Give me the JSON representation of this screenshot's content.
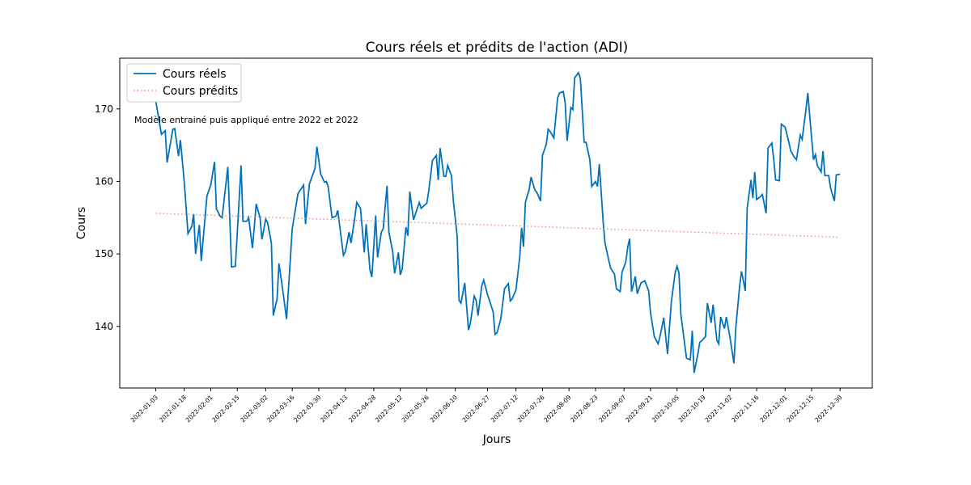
{
  "chart_data": {
    "type": "line",
    "title": "Cours réels et prédits de l'action (ADI)",
    "xlabel": "Jours",
    "ylabel": "Cours",
    "annotation": "Modèle entrainé puis appliqué entre 2022 et 2022",
    "legend": "upper left",
    "xlim": [
      "2021-12-15",
      "2023-01-16"
    ],
    "xticks": [
      "2022-01-03",
      "2022-01-18",
      "2022-02-01",
      "2022-02-15",
      "2022-03-02",
      "2022-03-16",
      "2022-03-30",
      "2022-04-13",
      "2022-04-28",
      "2022-05-12",
      "2022-05-26",
      "2022-06-10",
      "2022-06-27",
      "2022-07-12",
      "2022-07-26",
      "2022-08-09",
      "2022-08-23",
      "2022-09-07",
      "2022-09-21",
      "2022-10-05",
      "2022-10-19",
      "2022-11-02",
      "2022-11-16",
      "2022-12-01",
      "2022-12-15",
      "2022-12-30"
    ],
    "ylim": [
      131.5,
      177
    ],
    "yticks": [
      140,
      150,
      160,
      170
    ],
    "series": [
      {
        "name": "Cours réels",
        "color": "#0072bd",
        "style": "solid",
        "x": [
          "2022-01-03",
          "2022-01-05",
          "2022-01-06",
          "2022-01-08",
          "2022-01-09",
          "2022-01-12",
          "2022-01-13",
          "2022-01-15",
          "2022-01-16",
          "2022-01-18",
          "2022-01-20",
          "2022-01-22",
          "2022-01-23",
          "2022-01-24",
          "2022-01-26",
          "2022-01-27",
          "2022-01-30",
          "2022-02-01",
          "2022-02-03",
          "2022-02-04",
          "2022-02-06",
          "2022-02-07",
          "2022-02-10",
          "2022-02-12",
          "2022-02-14",
          "2022-02-17",
          "2022-02-18",
          "2022-02-20",
          "2022-02-21",
          "2022-02-23",
          "2022-02-25",
          "2022-02-27",
          "2022-02-28",
          "2022-03-02",
          "2022-03-03",
          "2022-03-05",
          "2022-03-06",
          "2022-03-08",
          "2022-03-09",
          "2022-03-11",
          "2022-03-13",
          "2022-03-16",
          "2022-03-19",
          "2022-03-22",
          "2022-03-23",
          "2022-03-25",
          "2022-03-28",
          "2022-03-29",
          "2022-03-31",
          "2022-04-02",
          "2022-04-03",
          "2022-04-04",
          "2022-04-06",
          "2022-04-08",
          "2022-04-09",
          "2022-04-12",
          "2022-04-13",
          "2022-04-15",
          "2022-04-16",
          "2022-04-18",
          "2022-04-19",
          "2022-04-21",
          "2022-04-23",
          "2022-04-24",
          "2022-04-26",
          "2022-04-27",
          "2022-04-29",
          "2022-04-30",
          "2022-05-02",
          "2022-05-03",
          "2022-05-05",
          "2022-05-06",
          "2022-05-08",
          "2022-05-09",
          "2022-05-11",
          "2022-05-12",
          "2022-05-13",
          "2022-05-15",
          "2022-05-16",
          "2022-05-17",
          "2022-05-19",
          "2022-05-20",
          "2022-05-22",
          "2022-05-23",
          "2022-05-26",
          "2022-05-27",
          "2022-05-29",
          "2022-05-31",
          "2022-06-01",
          "2022-06-02",
          "2022-06-04",
          "2022-06-05",
          "2022-06-06",
          "2022-06-08",
          "2022-06-09",
          "2022-06-11",
          "2022-06-12",
          "2022-06-13",
          "2022-06-15",
          "2022-06-17",
          "2022-06-18",
          "2022-06-20",
          "2022-06-21",
          "2022-06-22",
          "2022-06-24",
          "2022-06-25",
          "2022-06-27",
          "2022-06-30",
          "2022-07-01",
          "2022-07-02",
          "2022-07-04",
          "2022-07-06",
          "2022-07-08",
          "2022-07-09",
          "2022-07-10",
          "2022-07-12",
          "2022-07-14",
          "2022-07-15",
          "2022-07-16",
          "2022-07-17",
          "2022-07-19",
          "2022-07-20",
          "2022-07-22",
          "2022-07-23",
          "2022-07-25",
          "2022-07-26",
          "2022-07-28",
          "2022-07-29",
          "2022-07-30",
          "2022-08-01",
          "2022-08-03",
          "2022-08-04",
          "2022-08-06",
          "2022-08-07",
          "2022-08-08",
          "2022-08-10",
          "2022-08-11",
          "2022-08-12",
          "2022-08-14",
          "2022-08-15",
          "2022-08-17",
          "2022-08-18",
          "2022-08-20",
          "2022-08-21",
          "2022-08-23",
          "2022-08-24",
          "2022-08-25",
          "2022-08-27",
          "2022-08-28",
          "2022-08-30",
          "2022-08-31",
          "2022-09-02",
          "2022-09-03",
          "2022-09-05",
          "2022-09-06",
          "2022-09-08",
          "2022-09-09",
          "2022-09-10",
          "2022-09-11",
          "2022-09-13",
          "2022-09-14",
          "2022-09-16",
          "2022-09-18",
          "2022-09-20",
          "2022-09-21",
          "2022-09-23",
          "2022-09-25",
          "2022-09-26",
          "2022-09-28",
          "2022-09-29",
          "2022-09-30",
          "2022-10-02",
          "2022-10-04",
          "2022-10-05",
          "2022-10-06",
          "2022-10-07",
          "2022-10-09",
          "2022-10-10",
          "2022-10-12",
          "2022-10-13",
          "2022-10-14",
          "2022-10-16",
          "2022-10-17",
          "2022-10-18",
          "2022-10-20",
          "2022-10-21",
          "2022-10-23",
          "2022-10-24",
          "2022-10-26",
          "2022-10-27",
          "2022-10-28",
          "2022-10-30",
          "2022-10-31",
          "2022-11-02",
          "2022-11-04",
          "2022-11-05",
          "2022-11-07",
          "2022-11-08",
          "2022-11-10",
          "2022-11-11",
          "2022-11-13",
          "2022-11-14",
          "2022-11-15",
          "2022-11-16",
          "2022-11-18",
          "2022-11-19",
          "2022-11-21",
          "2022-11-22",
          "2022-11-24",
          "2022-11-25",
          "2022-11-26",
          "2022-11-28",
          "2022-11-29",
          "2022-12-01",
          "2022-12-03",
          "2022-12-04",
          "2022-12-06",
          "2022-12-07",
          "2022-12-09",
          "2022-12-10",
          "2022-12-12",
          "2022-12-13",
          "2022-12-14",
          "2022-12-16",
          "2022-12-17",
          "2022-12-18",
          "2022-12-20",
          "2022-12-21",
          "2022-12-22",
          "2022-12-24",
          "2022-12-25",
          "2022-12-27",
          "2022-12-28",
          "2022-12-30"
        ],
        "values": [
          171.1,
          168,
          166.5,
          167,
          162.6,
          167.2,
          167.3,
          163.5,
          165.7,
          160,
          152.8,
          153.8,
          155.5,
          150,
          154,
          149,
          158,
          159.5,
          162.7,
          156.2,
          155.2,
          155,
          162,
          148.2,
          148.3,
          162.2,
          154.5,
          154.5,
          155,
          150.8,
          156.9,
          155,
          152,
          154.8,
          154.3,
          151.5,
          141.5,
          143.8,
          148.7,
          145,
          141,
          153.5,
          158.3,
          159.5,
          154.1,
          159.6,
          161.8,
          164.8,
          161,
          159.9,
          160,
          159.2,
          155,
          155.2,
          156,
          149.8,
          150.3,
          153,
          151.5,
          155,
          157.1,
          156.3,
          150.2,
          154.1,
          147.8,
          146.8,
          155.3,
          149.5,
          153,
          153.5,
          159.4,
          153,
          150.3,
          147.3,
          150.2,
          147.1,
          147.9,
          153.7,
          152.5,
          158.6,
          154.7,
          155.5,
          157.1,
          156.3,
          157,
          158.7,
          162.9,
          163.6,
          160.2,
          164.6,
          160.7,
          160.7,
          162.2,
          160.8,
          157.3,
          152.5,
          143.6,
          143.2,
          146,
          139.5,
          140.5,
          144.2,
          143.6,
          141.5,
          145.6,
          146.4,
          144.4,
          142,
          138.9,
          139.1,
          141,
          145.2,
          145.9,
          143.5,
          143.8,
          145,
          149.5,
          153.6,
          151,
          157.1,
          158.9,
          160.6,
          158.8,
          158.5,
          157.3,
          163.6,
          165.1,
          167.2,
          166.9,
          166,
          171.5,
          172.2,
          172.4,
          170.8,
          165.6,
          170.2,
          169.9,
          174.3,
          175,
          174.2,
          165.4,
          165.4,
          163,
          159.3,
          160,
          159.3,
          162.4,
          154.5,
          151.5,
          149.1,
          148,
          147.2,
          145.2,
          144.8,
          147.5,
          148.9,
          151,
          152.1,
          144.8,
          146.9,
          144.5,
          146,
          146.3,
          144.9,
          141.9,
          138.6,
          137.6,
          138.6,
          141.2,
          138.6,
          136.2,
          143.4,
          147.4,
          148.3,
          147.4,
          141.7,
          137.6,
          135.6,
          135.4,
          139.4,
          133.6,
          136.2,
          137.8,
          138,
          138.6,
          143.2,
          140.5,
          143,
          138.1,
          137.6,
          141.3,
          139.7,
          141.3,
          138.4,
          134.9,
          139.8,
          145.5,
          147.6,
          144.9,
          156.3,
          160.2,
          157.7,
          161.3,
          157.5,
          157.9,
          158.2,
          155.6,
          164.6,
          165.3,
          163.1,
          160.2,
          160.1,
          167.9,
          167.5,
          165.4,
          164.2,
          163.3,
          163,
          166.4,
          165.8,
          169.9,
          172.2,
          169,
          163,
          163.7,
          162.2,
          161.3,
          164.2,
          160.8,
          160.8,
          159.1,
          157.3,
          160.9,
          161
        ]
      },
      {
        "name": "Cours prédits",
        "color": "#f08080",
        "style": "dotted",
        "x": [
          "2022-01-03",
          "2022-12-30"
        ],
        "values": [
          155.6,
          152.3
        ]
      }
    ]
  }
}
